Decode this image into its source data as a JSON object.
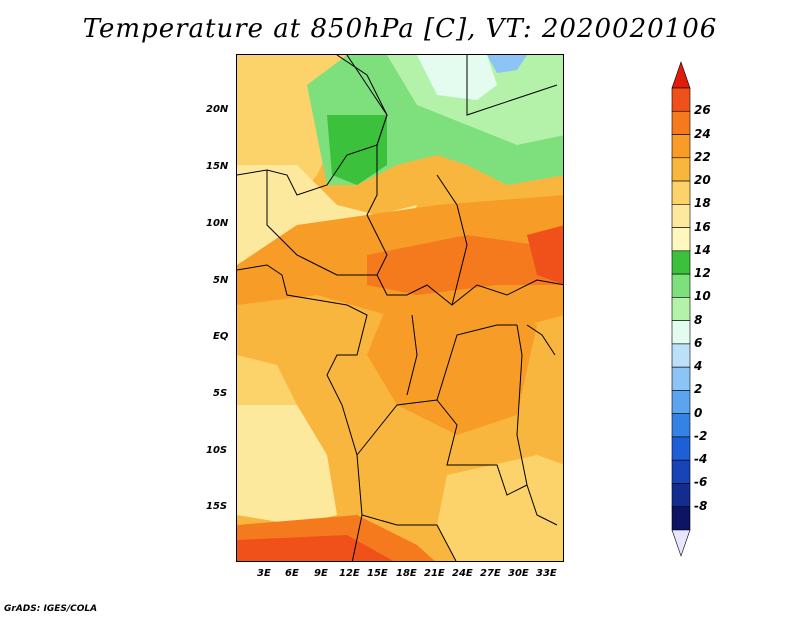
{
  "title": "Temperature at 850hPa [C], VT: 2020020106",
  "footer": "GrADS: IGES/COLA",
  "map": {
    "lat_labels": [
      "20N",
      "15N",
      "10N",
      "5N",
      "EQ",
      "5S",
      "10S",
      "15S"
    ],
    "lon_labels": [
      "3E",
      "6E",
      "9E",
      "12E",
      "15E",
      "18E",
      "21E",
      "24E",
      "27E",
      "30E",
      "33E"
    ]
  },
  "colorbar": {
    "labels": [
      "26",
      "24",
      "22",
      "20",
      "18",
      "16",
      "14",
      "12",
      "10",
      "8",
      "6",
      "4",
      "2",
      "0",
      "-2",
      "-4",
      "-6",
      "-8"
    ],
    "colors": [
      "#e01c0c",
      "#f0501a",
      "#f57a1e",
      "#f79c26",
      "#f9b63f",
      "#fcd26a",
      "#fde99e",
      "#fef8c0",
      "#3cc13c",
      "#7de07d",
      "#b5f2a9",
      "#e3fcef",
      "#bcdffa",
      "#8cc4f6",
      "#5ca4ef",
      "#3382e4",
      "#1e5fd6",
      "#1844b8",
      "#142c8e",
      "#0c1463",
      "#e6e6ff"
    ]
  }
}
